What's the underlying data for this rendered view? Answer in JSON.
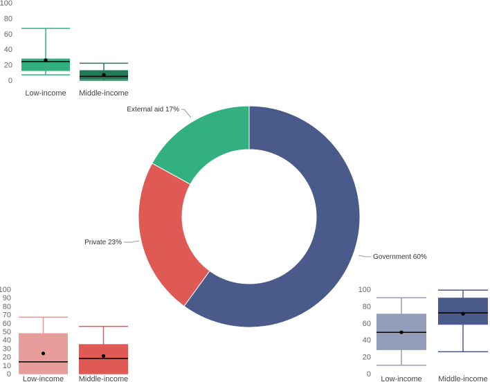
{
  "chart_data": [
    {
      "id": "funding-donut",
      "type": "pie",
      "variant": "donut",
      "labels": [
        "Government",
        "Private",
        "External aid"
      ],
      "values": [
        60,
        23,
        17
      ],
      "slice_labels": [
        "Government 60%",
        "Private 23%",
        "External aid 17%"
      ],
      "colors": [
        "#4a5a8a",
        "#df5a55",
        "#32b07f"
      ]
    },
    {
      "id": "external-aid-box",
      "type": "boxplot",
      "series": "External aid",
      "categories": [
        "Low-income",
        "Middle-income"
      ],
      "ylim": [
        0,
        100
      ],
      "yticks": [
        0,
        20,
        40,
        60,
        80,
        100
      ],
      "boxes": [
        {
          "category": "Low-income",
          "min": 7,
          "q1": 12,
          "median": 24,
          "q3": 28,
          "max": 67,
          "mean": 26
        },
        {
          "category": "Middle-income",
          "min": 0,
          "q1": 1,
          "median": 5,
          "q3": 13,
          "max": 22,
          "mean": 7
        }
      ],
      "colors": [
        "#32b07f",
        "#217a55"
      ]
    },
    {
      "id": "private-box",
      "type": "boxplot",
      "series": "Private",
      "categories": [
        "Low-income",
        "Middle-income"
      ],
      "ylim": [
        0,
        100
      ],
      "yticks": [
        0,
        10,
        20,
        30,
        40,
        50,
        60,
        70,
        80,
        90,
        100
      ],
      "boxes": [
        {
          "category": "Low-income",
          "min": 0,
          "q1": 0,
          "median": 14,
          "q3": 48,
          "max": 67,
          "mean": 24
        },
        {
          "category": "Middle-income",
          "min": 0,
          "q1": 0,
          "median": 18,
          "q3": 35,
          "max": 56,
          "mean": 21
        }
      ],
      "colors": [
        "#e89d9d",
        "#df5a55"
      ]
    },
    {
      "id": "government-box",
      "type": "boxplot",
      "series": "Government",
      "categories": [
        "Low-income",
        "Middle-income"
      ],
      "ylim": [
        0,
        100
      ],
      "yticks": [
        0,
        20,
        40,
        60,
        80,
        100
      ],
      "boxes": [
        {
          "category": "Low-income",
          "min": 10,
          "q1": 28,
          "median": 49,
          "q3": 71,
          "max": 90,
          "mean": 49
        },
        {
          "category": "Middle-income",
          "min": 26,
          "q1": 58,
          "median": 72,
          "q3": 90,
          "max": 99,
          "mean": 71
        }
      ],
      "colors": [
        "#939db9",
        "#4a5a8a"
      ]
    }
  ]
}
